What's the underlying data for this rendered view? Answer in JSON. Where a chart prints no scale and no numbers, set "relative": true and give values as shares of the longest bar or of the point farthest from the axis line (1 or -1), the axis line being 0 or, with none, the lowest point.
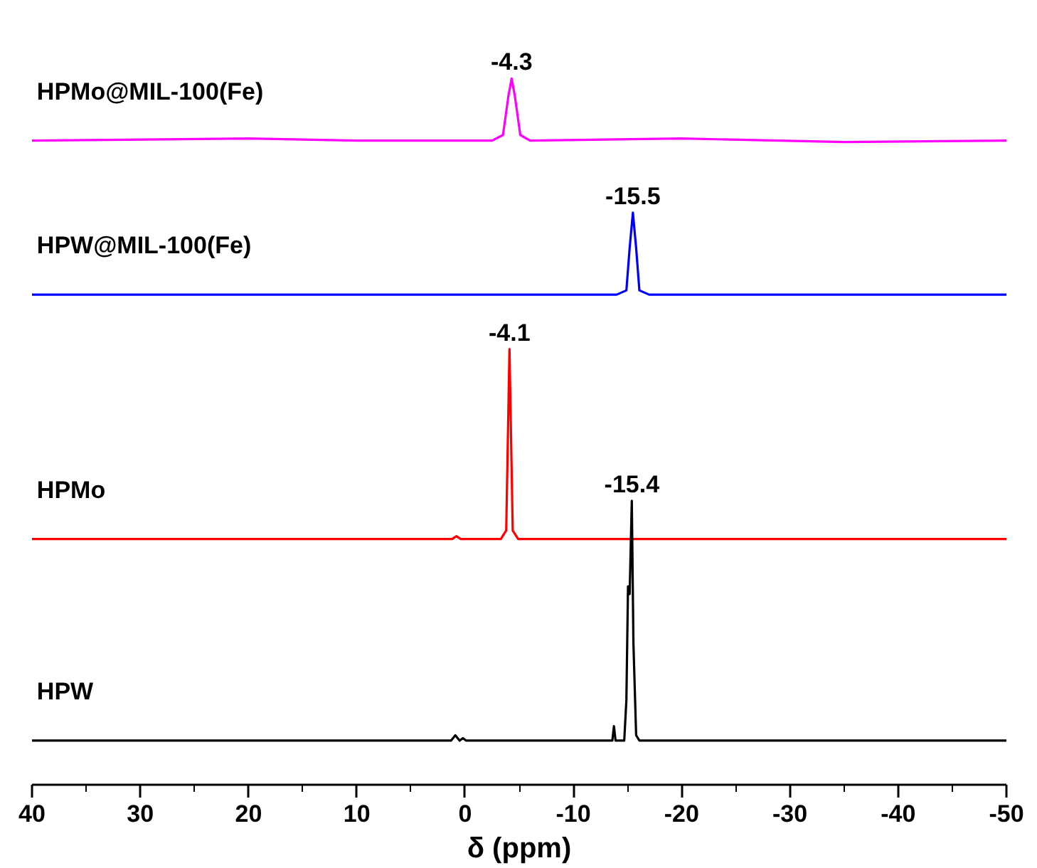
{
  "chart_data": {
    "type": "line",
    "relative": true,
    "xlabel": "δ (ppm)",
    "xlim": [
      40,
      -50
    ],
    "xticks": [
      40,
      30,
      20,
      10,
      0,
      -10,
      -20,
      -30,
      -40,
      -50
    ],
    "tick_labels": "x",
    "grid": false,
    "legend": false,
    "marker": "none",
    "line_style": "solid",
    "series": [
      {
        "name": "HPMo@MIL-100(Fe)",
        "color": "#ff00ff",
        "x": [
          40,
          20,
          10,
          -2.5,
          -3.5,
          -4.0,
          -4.3,
          -4.6,
          -5.1,
          -6.0,
          -20,
          -35,
          -50
        ],
        "values": [
          0.912,
          0.915,
          0.912,
          0.912,
          0.92,
          0.975,
          1.0,
          0.975,
          0.92,
          0.912,
          0.915,
          0.91,
          0.912
        ]
      },
      {
        "name": "HPW@MIL-100(Fe)",
        "color": "#0000ff",
        "x": [
          40,
          -14,
          -14.9,
          -15.2,
          -15.5,
          -15.8,
          -16.1,
          -17,
          -50
        ],
        "values": [
          0.694,
          0.694,
          0.7,
          0.76,
          0.81,
          0.76,
          0.7,
          0.694,
          0.694
        ]
      },
      {
        "name": "HPMo",
        "color": "#ff0000",
        "x": [
          40,
          1.2,
          0.8,
          0.4,
          -3.3,
          -3.8,
          -4.1,
          -4.4,
          -4.9,
          -50
        ],
        "values": [
          0.348,
          0.348,
          0.352,
          0.348,
          0.348,
          0.36,
          0.617,
          0.36,
          0.348,
          0.348
        ]
      },
      {
        "name": "HPW",
        "color": "#000000",
        "x": [
          40,
          1.3,
          0.9,
          0.5,
          0.2,
          -0.1,
          -13.6,
          -13.75,
          -13.9,
          -14.7,
          -14.9,
          -15.05,
          -15.2,
          -15.4,
          -15.55,
          -15.8,
          -16.1,
          -50
        ],
        "values": [
          0.0625,
          0.0625,
          0.07,
          0.0625,
          0.066,
          0.0625,
          0.0625,
          0.083,
          0.0625,
          0.0625,
          0.12,
          0.281,
          0.27,
          0.402,
          0.2,
          0.07,
          0.0625,
          0.0625
        ]
      }
    ],
    "annotations": [
      {
        "text": "-4.3",
        "x": -4.3,
        "y": 1.0
      },
      {
        "text": "-15.5",
        "x": -15.5,
        "y": 0.81
      },
      {
        "text": "-4.1",
        "x": -4.1,
        "y": 0.617
      },
      {
        "text": "-15.4",
        "x": -15.4,
        "y": 0.402
      }
    ]
  }
}
